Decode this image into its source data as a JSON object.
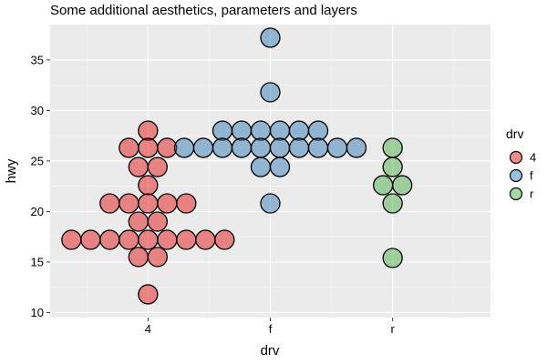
{
  "chart_data": {
    "type": "dotplot",
    "title": "Some additional aesthetics, parameters and layers",
    "xlabel": "drv",
    "ylabel": "hwy",
    "categories": [
      "4",
      "f",
      "r"
    ],
    "ylim": [
      9.5,
      38.5
    ],
    "yticks": [
      10,
      15,
      20,
      25,
      30,
      35
    ],
    "grid": true,
    "legend": {
      "title": "drv",
      "position": "right",
      "entries": [
        "4",
        "f",
        "r"
      ]
    },
    "colors": {
      "4": "#e41a1c",
      "f": "#377eb8",
      "r": "#4daf4a"
    },
    "series": [
      {
        "name": "4",
        "points": [
          {
            "y": 28.0,
            "count": 1
          },
          {
            "y": 26.3,
            "count": 3
          },
          {
            "y": 24.4,
            "count": 2
          },
          {
            "y": 22.6,
            "count": 1
          },
          {
            "y": 20.8,
            "count": 5
          },
          {
            "y": 19.0,
            "count": 2
          },
          {
            "y": 17.2,
            "count": 9
          },
          {
            "y": 15.5,
            "count": 2
          },
          {
            "y": 11.8,
            "count": 1
          }
        ]
      },
      {
        "name": "f",
        "points": [
          {
            "y": 37.2,
            "count": 1
          },
          {
            "y": 31.8,
            "count": 1
          },
          {
            "y": 28.0,
            "count": 6
          },
          {
            "y": 26.3,
            "count": 10
          },
          {
            "y": 24.4,
            "count": 2
          },
          {
            "y": 20.8,
            "count": 1
          }
        ]
      },
      {
        "name": "r",
        "points": [
          {
            "y": 26.3,
            "count": 1
          },
          {
            "y": 24.4,
            "count": 1
          },
          {
            "y": 22.6,
            "count": 2
          },
          {
            "y": 20.8,
            "count": 1
          },
          {
            "y": 15.4,
            "count": 1
          }
        ]
      }
    ]
  }
}
